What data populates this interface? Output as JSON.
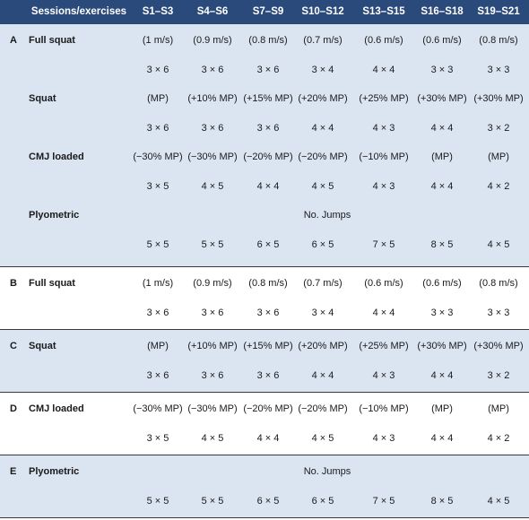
{
  "table": {
    "header": {
      "label": "Sessions/exercises",
      "columns": [
        "S1–S3",
        "S4–S6",
        "S7–S9",
        "S10–S12",
        "S13–S15",
        "S16–S18",
        "S19–S21"
      ]
    },
    "groups": [
      {
        "letter": "A",
        "shade": true,
        "exercises": [
          {
            "name": "Full squat",
            "load": [
              "(1 m/s)",
              "(0.9 m/s)",
              "(0.8 m/s)",
              "(0.7 m/s)",
              "(0.6 m/s)",
              "(0.6 m/s)",
              "(0.8 m/s)"
            ],
            "load_merged": "",
            "sets": [
              "3 × 6",
              "3 × 6",
              "3 × 6",
              "3 × 4",
              "4 × 4",
              "3 × 3",
              "3 × 3"
            ]
          },
          {
            "name": "Squat",
            "load": [
              "(MP)",
              "(+10% MP)",
              "(+15% MP)",
              "(+20% MP)",
              "(+25% MP)",
              "(+30% MP)",
              "(+30% MP)"
            ],
            "load_merged": "",
            "sets": [
              "3 × 6",
              "3 × 6",
              "3 × 6",
              "4 × 4",
              "4 × 3",
              "4 × 4",
              "3 × 2"
            ]
          },
          {
            "name": "CMJ loaded",
            "load": [
              "(−30% MP)",
              "(−30% MP)",
              "(−20% MP)",
              "(−20% MP)",
              "(−10% MP)",
              "(MP)",
              "(MP)"
            ],
            "load_merged": "",
            "sets": [
              "3 × 5",
              "4 × 5",
              "4 × 4",
              "4 × 5",
              "4 × 3",
              "4 × 4",
              "4 × 2"
            ]
          },
          {
            "name": "Plyometric",
            "load": [],
            "load_merged": "No. Jumps",
            "sets": [
              "5 × 5",
              "5 × 5",
              "6 × 5",
              "6 × 5",
              "7 × 5",
              "8 × 5",
              "4 × 5"
            ]
          }
        ]
      },
      {
        "letter": "B",
        "shade": false,
        "exercises": [
          {
            "name": "Full squat",
            "load": [
              "(1 m/s)",
              "(0.9 m/s)",
              "(0.8 m/s)",
              "(0.7 m/s)",
              "(0.6 m/s)",
              "(0.6 m/s)",
              "(0.8 m/s)"
            ],
            "load_merged": "",
            "sets": [
              "3 × 6",
              "3 × 6",
              "3 × 6",
              "3 × 4",
              "4 × 4",
              "3 × 3",
              "3 × 3"
            ]
          }
        ]
      },
      {
        "letter": "C",
        "shade": true,
        "exercises": [
          {
            "name": "Squat",
            "load": [
              "(MP)",
              "(+10% MP)",
              "(+15% MP)",
              "(+20% MP)",
              "(+25% MP)",
              "(+30% MP)",
              "(+30% MP)"
            ],
            "load_merged": "",
            "sets": [
              "3 × 6",
              "3 × 6",
              "3 × 6",
              "4 × 4",
              "4 × 3",
              "4 × 4",
              "3 × 2"
            ]
          }
        ]
      },
      {
        "letter": "D",
        "shade": false,
        "exercises": [
          {
            "name": "CMJ loaded",
            "load": [
              "(−30% MP)",
              "(−30% MP)",
              "(−20% MP)",
              "(−20% MP)",
              "(−10% MP)",
              "(MP)",
              "(MP)"
            ],
            "load_merged": "",
            "sets": [
              "3 × 5",
              "4 × 5",
              "4 × 4",
              "4 × 5",
              "4 × 3",
              "4 × 4",
              "4 × 2"
            ]
          }
        ]
      },
      {
        "letter": "E",
        "shade": true,
        "exercises": [
          {
            "name": "Plyometric",
            "load": [],
            "load_merged": "No. Jumps",
            "sets": [
              "5 × 5",
              "5 × 5",
              "6 × 5",
              "6 × 5",
              "7 × 5",
              "8 × 5",
              "4 × 5"
            ]
          }
        ]
      }
    ]
  }
}
